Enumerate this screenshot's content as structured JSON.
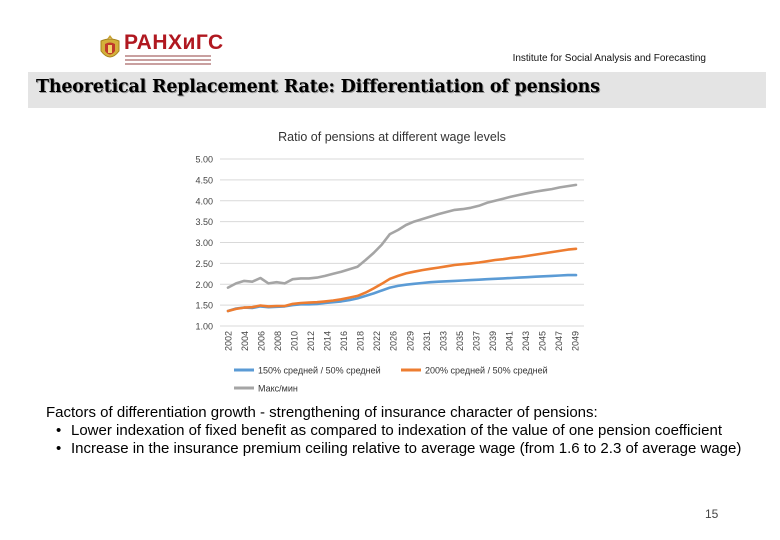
{
  "header": {
    "logo_text": "РАНХиГС",
    "institute": "Institute for Social Analysis and Forecasting",
    "title": "Theoretical Replacement Rate: Differentiation of pensions"
  },
  "chart_data": {
    "type": "line",
    "title": "Ratio of pensions at different wage levels",
    "xlabel": "",
    "ylabel": "",
    "ylim": [
      1.0,
      5.0
    ],
    "y_ticks": [
      "5.00",
      "4.50",
      "4.00",
      "3.50",
      "3.00",
      "2.50",
      "2.00",
      "1.50",
      "1.00"
    ],
    "x_tick_labels": [
      "2002",
      "2004",
      "2006",
      "2008",
      "2010",
      "2012",
      "2014",
      "2016",
      "2018",
      "2022",
      "2026",
      "2029",
      "2031",
      "2033",
      "2035",
      "2037",
      "2039",
      "2041",
      "2043",
      "2045",
      "2047",
      "2049"
    ],
    "grid": true,
    "legend_position": "bottom",
    "series": [
      {
        "name": "150% средней / 50% средней",
        "color": "#5b9bd5",
        "values": [
          1.36,
          1.42,
          1.44,
          1.43,
          1.47,
          1.45,
          1.46,
          1.47,
          1.5,
          1.52,
          1.52,
          1.53,
          1.55,
          1.57,
          1.59,
          1.62,
          1.66,
          1.72,
          1.78,
          1.85,
          1.92,
          1.96,
          1.99,
          2.01,
          2.03,
          2.05,
          2.06,
          2.07,
          2.08,
          2.09,
          2.1,
          2.11,
          2.12,
          2.13,
          2.14,
          2.15,
          2.16,
          2.17,
          2.18,
          2.19,
          2.2,
          2.21,
          2.22,
          2.22
        ]
      },
      {
        "name": "200% средней / 50% средней",
        "color": "#ed7d31",
        "values": [
          1.36,
          1.41,
          1.44,
          1.45,
          1.49,
          1.47,
          1.48,
          1.48,
          1.53,
          1.55,
          1.56,
          1.57,
          1.59,
          1.61,
          1.64,
          1.68,
          1.72,
          1.8,
          1.9,
          2.01,
          2.13,
          2.2,
          2.26,
          2.3,
          2.34,
          2.37,
          2.4,
          2.43,
          2.46,
          2.48,
          2.5,
          2.52,
          2.55,
          2.58,
          2.6,
          2.63,
          2.65,
          2.68,
          2.71,
          2.74,
          2.77,
          2.8,
          2.83,
          2.85
        ]
      },
      {
        "name": "Макс/мин",
        "color": "#a5a5a5",
        "values": [
          1.92,
          2.02,
          2.08,
          2.06,
          2.15,
          2.02,
          2.05,
          2.02,
          2.12,
          2.14,
          2.14,
          2.16,
          2.2,
          2.25,
          2.3,
          2.36,
          2.42,
          2.58,
          2.75,
          2.95,
          3.2,
          3.3,
          3.42,
          3.5,
          3.56,
          3.62,
          3.68,
          3.73,
          3.78,
          3.8,
          3.83,
          3.88,
          3.95,
          4.0,
          4.05,
          4.1,
          4.14,
          4.18,
          4.22,
          4.25,
          4.28,
          4.32,
          4.35,
          4.38
        ]
      }
    ]
  },
  "caption": {
    "intro": "Factors of differentiation growth - strengthening of insurance character of pensions:",
    "bullets": [
      "Lower indexation of fixed benefit as compared to indexation of the value of one pension coefficient",
      "Increase in the insurance premium ceiling relative to average wage (from 1.6 to 2.3 of average wage)"
    ]
  },
  "page_number": "15"
}
